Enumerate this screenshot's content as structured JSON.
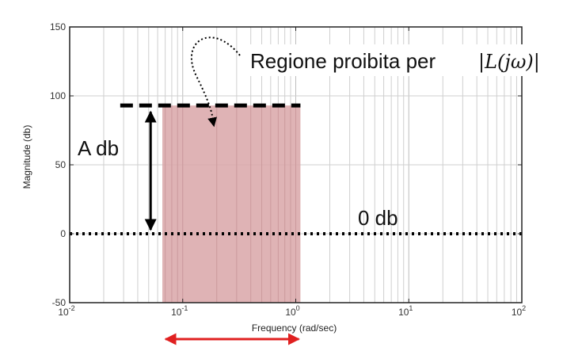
{
  "chart_data": {
    "type": "line",
    "title": "",
    "xlabel": "Frequency (rad/sec)",
    "ylabel": "Magnitude (db)",
    "xscale": "log",
    "xlim": [
      0.01,
      100
    ],
    "ylim": [
      -50,
      150
    ],
    "grid": true,
    "x_ticks": [
      {
        "value": 0.01,
        "base": "10",
        "exp": "-2"
      },
      {
        "value": 0.1,
        "base": "10",
        "exp": "-1"
      },
      {
        "value": 1,
        "base": "10",
        "exp": "0"
      },
      {
        "value": 10,
        "base": "10",
        "exp": "1"
      },
      {
        "value": 100,
        "base": "10",
        "exp": "2"
      }
    ],
    "y_ticks": [
      {
        "value": -50,
        "label": "-50"
      },
      {
        "value": 0,
        "label": "0"
      },
      {
        "value": 50,
        "label": "50"
      },
      {
        "value": 100,
        "label": "100"
      },
      {
        "value": 150,
        "label": "150"
      }
    ],
    "forbidden_region": {
      "x_start": 0.066,
      "x_end": 1.1,
      "y_top": 93,
      "y_bottom": -50,
      "color": "#d9a6a8"
    },
    "dashed_bound": {
      "x_start": 0.028,
      "x_end": 1.1,
      "y": 93,
      "color": "#000000"
    },
    "zero_db_line": {
      "y": 0,
      "color": "#000000"
    },
    "annotations": {
      "region_label": "Regione proibita per",
      "region_math": "|L(jω)|",
      "a_db_label": "A db",
      "zero_db_label": "0 db",
      "a_db_arrow_x": 0.052,
      "bandwidth_arrow_color": "#e02020"
    }
  }
}
